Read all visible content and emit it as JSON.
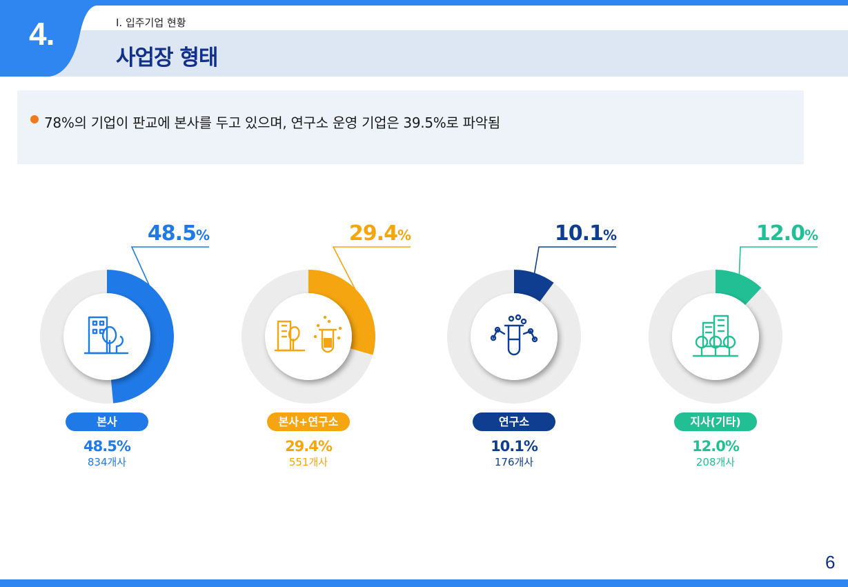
{
  "header": {
    "section_number": "4.",
    "breadcrumb": "I.  입주기업 현황",
    "title": "사업장 형태"
  },
  "summary": {
    "text": "78%의 기업이 판교에 본사를 두고 있으며, 연구소 운영 기업은 39.5%로 파악됨"
  },
  "colors": {
    "accent": "#2f86f0",
    "title": "#10308a",
    "ring_bg": "#ececec",
    "bullet": "#ef7a1a"
  },
  "chart_data": {
    "type": "pie",
    "categories": [
      "본사",
      "본사+연구소",
      "연구소",
      "지사(기타)"
    ],
    "values": [
      48.5,
      29.4,
      10.1,
      12.0
    ],
    "unit": "%",
    "counts": [
      "834개사",
      "551개사",
      "176개사",
      "208개사"
    ],
    "percent_labels": [
      "48.5",
      "29.4",
      "10.1",
      "12.0"
    ],
    "percent_suffix": "%",
    "value_labels": [
      "48.5%",
      "29.4%",
      "10.1%",
      "12.0%"
    ],
    "colors": [
      "#1f7ae8",
      "#f5a50f",
      "#0f3d8f",
      "#22bf95"
    ],
    "icons": [
      "office-building-icon",
      "office-lab-icon",
      "test-tube-icon",
      "branch-building-icon"
    ]
  },
  "page_number": "6"
}
